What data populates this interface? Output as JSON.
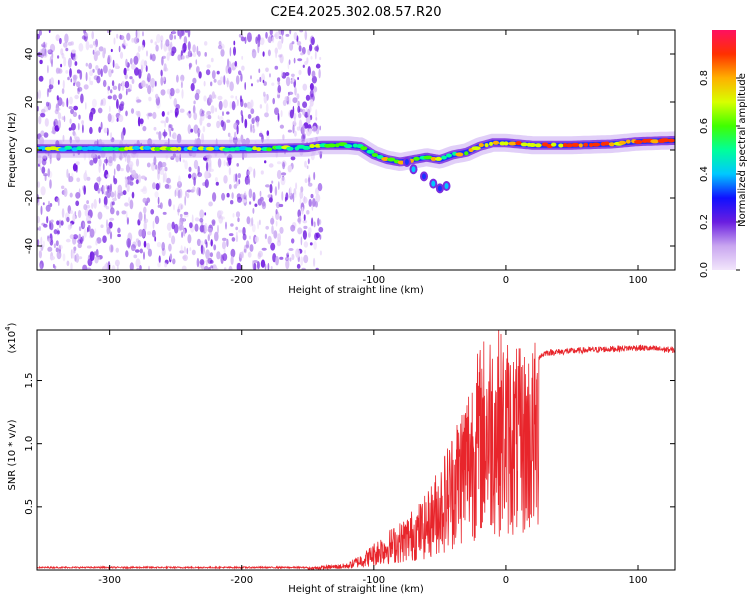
{
  "title": "C2E4.2025.302.08.57.R20",
  "colorbar": {
    "label": "Normalized spectral amplitude",
    "ticks": [
      "0.0",
      "0.2",
      "0.4",
      "0.6",
      "0.8"
    ],
    "tick_values": [
      0.0,
      0.2,
      0.4,
      0.6,
      0.8
    ],
    "range": [
      0,
      1
    ]
  },
  "chart_data": [
    {
      "type": "heatmap",
      "xlabel": "Height of straight line (km)",
      "ylabel": "Frequency (Hz)",
      "xlim": [
        -355,
        128
      ],
      "ylim": [
        -50,
        50
      ],
      "xticks": [
        -300,
        -200,
        -100,
        0,
        100
      ],
      "xtick_labels": [
        "-300",
        "-200",
        "-100",
        "0",
        "100"
      ],
      "yticks": [
        -40,
        -20,
        0,
        20,
        40
      ],
      "ytick_labels": [
        "-40",
        "-20",
        "0",
        "20",
        "40"
      ],
      "noise_region_x": [
        -355,
        -140
      ],
      "ridge": {
        "x": [
          -355,
          -300,
          -250,
          -200,
          -150,
          -140,
          -120,
          -110,
          -100,
          -90,
          -80,
          -70,
          -60,
          -50,
          -40,
          -30,
          -20,
          -10,
          0,
          20,
          50,
          80,
          100,
          128
        ],
        "y": [
          0.5,
          0.5,
          0.5,
          0.5,
          1.0,
          2.0,
          2.0,
          1.5,
          -2.0,
          -4.0,
          -5.0,
          -4.0,
          -3.0,
          -4.0,
          -2.0,
          -1.0,
          1.5,
          3.0,
          3.0,
          2.0,
          2.0,
          2.5,
          3.5,
          4.0
        ]
      },
      "branch": {
        "x": [
          -75,
          -70,
          -62,
          -55,
          -50,
          -45
        ],
        "y": [
          -5,
          -8,
          -11,
          -14,
          -16,
          -15
        ]
      }
    },
    {
      "type": "line",
      "xlabel": "Height of straight line (km)",
      "ylabel": "SNR (10 * v/v)",
      "y_multiplier": "(x10",
      "y_multiplier_exp": "4",
      "xlim": [
        -355,
        128
      ],
      "ylim": [
        0,
        1.9
      ],
      "xticks": [
        -300,
        -200,
        -100,
        0,
        100
      ],
      "xtick_labels": [
        "-300",
        "-200",
        "-100",
        "0",
        "100"
      ],
      "yticks": [
        0.5,
        1.0,
        1.5
      ],
      "ytick_labels": [
        "0.5",
        "1.0",
        "1.5"
      ],
      "color": "#e8252b",
      "envelope": {
        "x": [
          -355,
          -150,
          -120,
          -105,
          -95,
          -80,
          -60,
          -45,
          -35,
          -25,
          -15,
          -8,
          0,
          10,
          20,
          30,
          60,
          100,
          128
        ],
        "y": [
          0.02,
          0.02,
          0.05,
          0.15,
          0.25,
          0.35,
          0.55,
          0.9,
          1.2,
          1.5,
          1.75,
          1.8,
          1.7,
          1.6,
          1.65,
          1.72,
          1.74,
          1.76,
          1.74
        ]
      }
    }
  ]
}
